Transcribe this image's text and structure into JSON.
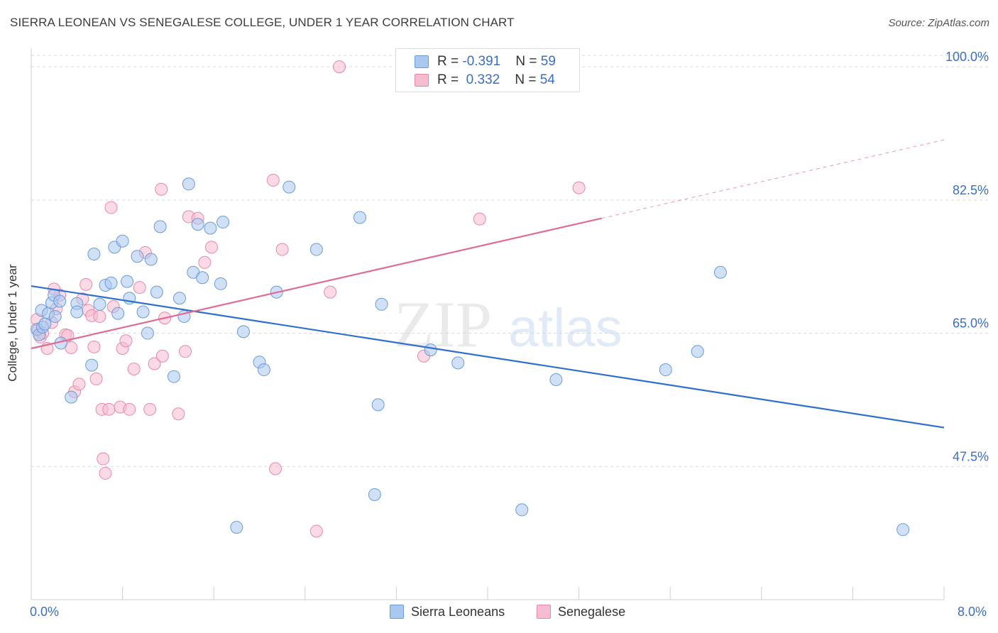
{
  "title": "SIERRA LEONEAN VS SENEGALESE COLLEGE, UNDER 1 YEAR CORRELATION CHART",
  "source": "Source: ZipAtlas.com",
  "watermark": {
    "zip": "ZIP",
    "atlas": "atlas"
  },
  "colors": {
    "blue_fill": "#a9c8f0",
    "blue_stroke": "#6a9bd8",
    "blue_line": "#2f6fd0",
    "pink_fill": "#f7bcd0",
    "pink_stroke": "#e48aa8",
    "pink_line": "#e06b95",
    "axis_text": "#3a6fc4",
    "grid": "#d9d9d9"
  },
  "legend_top": {
    "rows": [
      {
        "r_label": "R = ",
        "r_value": "-0.391",
        "n_label": "N = ",
        "n_value": "59"
      },
      {
        "r_label": "R = ",
        "r_value": " 0.332",
        "n_label": "N = ",
        "n_value": "54"
      }
    ]
  },
  "legend_bottom": {
    "series1": "Sierra Leoneans",
    "series2": "Senegalese"
  },
  "chart_data": {
    "type": "scatter",
    "title": "SIERRA LEONEAN VS SENEGALESE COLLEGE, UNDER 1 YEAR CORRELATION CHART",
    "xlabel": "",
    "ylabel": "College, Under 1 year",
    "xlim": [
      0,
      8
    ],
    "ylim": [
      30,
      101.5
    ],
    "x_tick_labels": [
      "0.0%",
      "8.0%"
    ],
    "y_ticks": [
      47.5,
      65.0,
      82.5,
      100.0
    ],
    "y_tick_labels": [
      "47.5%",
      "65.0%",
      "82.5%",
      "100.0%"
    ],
    "grid": "horizontal dashed",
    "legend_position": "top-center",
    "series": [
      {
        "name": "Sierra Leoneans",
        "color": "#a9c8f0",
        "trend": {
          "x": [
            0.0,
            8.0
          ],
          "y": [
            71.2,
            52.6
          ]
        },
        "points": [
          [
            0.05,
            65.5
          ],
          [
            0.07,
            64.8
          ],
          [
            0.09,
            68.0
          ],
          [
            0.1,
            65.8
          ],
          [
            0.15,
            67.6
          ],
          [
            0.18,
            69.0
          ],
          [
            0.2,
            70.0
          ],
          [
            0.21,
            67.2
          ],
          [
            0.25,
            69.2
          ],
          [
            0.26,
            63.7
          ],
          [
            0.35,
            56.6
          ],
          [
            0.4,
            68.9
          ],
          [
            0.4,
            67.8
          ],
          [
            0.53,
            60.8
          ],
          [
            0.55,
            75.4
          ],
          [
            0.6,
            68.8
          ],
          [
            0.65,
            71.3
          ],
          [
            0.7,
            71.6
          ],
          [
            0.73,
            76.3
          ],
          [
            0.76,
            67.6
          ],
          [
            0.8,
            77.1
          ],
          [
            0.84,
            71.8
          ],
          [
            0.86,
            69.6
          ],
          [
            0.93,
            75.1
          ],
          [
            0.98,
            67.8
          ],
          [
            1.02,
            65.0
          ],
          [
            1.05,
            74.7
          ],
          [
            1.1,
            70.4
          ],
          [
            1.13,
            79.0
          ],
          [
            1.25,
            59.3
          ],
          [
            1.3,
            69.6
          ],
          [
            1.34,
            67.2
          ],
          [
            1.38,
            84.6
          ],
          [
            1.42,
            73.0
          ],
          [
            1.46,
            79.3
          ],
          [
            1.5,
            72.3
          ],
          [
            1.57,
            78.8
          ],
          [
            1.66,
            71.5
          ],
          [
            1.68,
            79.6
          ],
          [
            1.8,
            39.5
          ],
          [
            1.86,
            65.2
          ],
          [
            2.0,
            61.2
          ],
          [
            2.04,
            60.2
          ],
          [
            2.15,
            70.4
          ],
          [
            2.26,
            84.2
          ],
          [
            2.5,
            76.0
          ],
          [
            2.88,
            80.2
          ],
          [
            3.01,
            43.8
          ],
          [
            3.04,
            55.6
          ],
          [
            3.07,
            68.8
          ],
          [
            3.5,
            62.8
          ],
          [
            3.74,
            61.1
          ],
          [
            4.3,
            41.8
          ],
          [
            4.6,
            58.9
          ],
          [
            5.56,
            60.2
          ],
          [
            5.84,
            62.6
          ],
          [
            6.04,
            73.0
          ],
          [
            7.64,
            39.2
          ],
          [
            0.12,
            66.2
          ]
        ]
      },
      {
        "name": "Senegalese",
        "color": "#f7bcd0",
        "trend": {
          "x": [
            0.0,
            5.0
          ],
          "y": [
            63.0,
            80.1
          ],
          "dashed_to": {
            "x": 8.0,
            "y": 90.4
          }
        },
        "points": [
          [
            0.05,
            66.8
          ],
          [
            0.06,
            65.4
          ],
          [
            0.08,
            64.5
          ],
          [
            0.1,
            65.0
          ],
          [
            0.14,
            63.0
          ],
          [
            0.18,
            66.4
          ],
          [
            0.22,
            68.2
          ],
          [
            0.25,
            70.0
          ],
          [
            0.3,
            64.8
          ],
          [
            0.32,
            64.7
          ],
          [
            0.35,
            63.1
          ],
          [
            0.38,
            57.3
          ],
          [
            0.42,
            58.3
          ],
          [
            0.45,
            69.5
          ],
          [
            0.48,
            71.4
          ],
          [
            0.5,
            68.0
          ],
          [
            0.53,
            67.3
          ],
          [
            0.57,
            59.0
          ],
          [
            0.6,
            67.2
          ],
          [
            0.62,
            55.0
          ],
          [
            0.63,
            48.5
          ],
          [
            0.65,
            46.6
          ],
          [
            0.68,
            55.0
          ],
          [
            0.7,
            81.5
          ],
          [
            0.72,
            68.5
          ],
          [
            0.78,
            55.3
          ],
          [
            0.8,
            63.0
          ],
          [
            0.83,
            64.0
          ],
          [
            0.86,
            55.0
          ],
          [
            0.9,
            60.3
          ],
          [
            0.95,
            71.0
          ],
          [
            1.0,
            75.6
          ],
          [
            1.04,
            55.0
          ],
          [
            1.08,
            61.0
          ],
          [
            1.14,
            83.9
          ],
          [
            1.15,
            62.0
          ],
          [
            1.17,
            67.0
          ],
          [
            1.29,
            54.4
          ],
          [
            1.35,
            62.6
          ],
          [
            1.38,
            80.3
          ],
          [
            1.46,
            80.1
          ],
          [
            1.52,
            74.3
          ],
          [
            1.58,
            76.3
          ],
          [
            2.12,
            85.1
          ],
          [
            2.14,
            47.2
          ],
          [
            2.2,
            76.0
          ],
          [
            2.5,
            39.0
          ],
          [
            2.62,
            70.4
          ],
          [
            2.7,
            100.0
          ],
          [
            3.44,
            62.0
          ],
          [
            3.93,
            80.0
          ],
          [
            4.8,
            84.1
          ],
          [
            0.2,
            70.8
          ],
          [
            0.55,
            63.2
          ]
        ]
      }
    ]
  }
}
